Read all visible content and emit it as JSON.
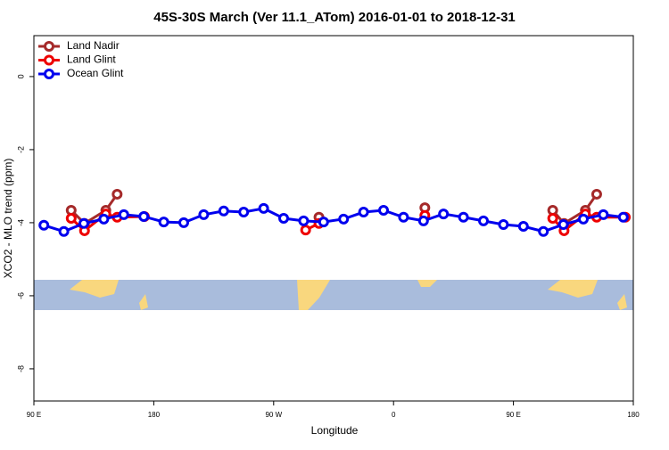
{
  "chart_data": {
    "type": "line",
    "title": "45S-30S March (Ver 11.1_ATom)   2016-01-01 to 2018-12-31",
    "x_label": "Longitude",
    "y_label": "XCO2 - MLO trend (ppm)",
    "xlim": [
      90,
      540
    ],
    "xticks": [
      {
        "value": 90,
        "label": "90 E"
      },
      180,
      {
        "value": 270,
        "label": "90 W"
      },
      {
        "value": 360,
        "label": "0"
      },
      {
        "value": 450,
        "label": "90 E"
      },
      {
        "value": 540,
        "label": "180"
      }
    ],
    "ylim": [
      -8.88,
      1.12
    ],
    "yticks": [
      0,
      -2,
      -4,
      -6,
      -8
    ],
    "legend": "top-left",
    "grid": false,
    "series": [
      {
        "name": "Land Nadir",
        "color": "#a52a2a",
        "x": [
          118,
          128,
          144,
          152.5,
          null,
          304,
          null,
          383.5,
          null,
          479.5,
          488,
          504,
          512.5
        ],
        "values": [
          -3.66,
          -4.02,
          -3.66,
          -3.22,
          null,
          -3.85,
          null,
          -3.59,
          null,
          -3.66,
          -4.02,
          -3.66,
          -3.22
        ]
      },
      {
        "name": "Land Glint",
        "color": "#ee0000",
        "x": [
          118,
          128,
          144,
          152.5,
          173,
          null,
          294,
          304,
          null,
          383.5,
          null,
          479.5,
          488,
          504,
          512.5,
          534
        ],
        "values": [
          -3.88,
          -4.22,
          -3.76,
          -3.85,
          -3.83,
          null,
          -4.2,
          -4.02,
          null,
          -3.8,
          null,
          -3.88,
          -4.22,
          -3.76,
          -3.85,
          -3.85
        ]
      },
      {
        "name": "Ocean Glint",
        "color": "#0000ee",
        "x": [
          97.5,
          112.5,
          127.5,
          142.5,
          157.5,
          172.5,
          187.5,
          202.5,
          217.5,
          232.5,
          247.5,
          262.5,
          277.5,
          292.5,
          307.5,
          322.5,
          337.5,
          352.5,
          367.5,
          382.5,
          397.5,
          412.5,
          427.5,
          442.5,
          457.5,
          472.5,
          487.5,
          502.5,
          517.5,
          532.5
        ],
        "values": [
          -4.07,
          -4.24,
          -4.02,
          -3.9,
          -3.78,
          -3.83,
          -3.98,
          -4.0,
          -3.78,
          -3.68,
          -3.71,
          -3.61,
          -3.88,
          -3.95,
          -3.98,
          -3.9,
          -3.71,
          -3.66,
          -3.85,
          -3.95,
          -3.76,
          -3.85,
          -3.95,
          -4.05,
          -4.1,
          -4.24,
          -4.05,
          -3.9,
          -3.78,
          -3.85
        ]
      }
    ]
  }
}
